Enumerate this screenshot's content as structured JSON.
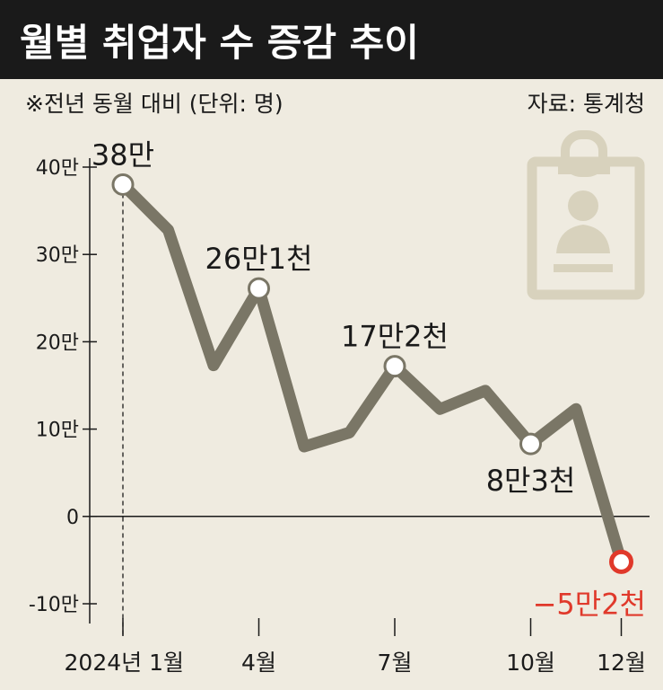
{
  "header": {
    "title": "월별 취업자 수 증감 추이",
    "subtitle": "※전년 동월 대비 (단위: 명)",
    "source": "자료: 통계청"
  },
  "colors": {
    "line": "#7a7666",
    "marker_fill": "#ffffff",
    "negative": "#e0392b",
    "icon": "#d8d2bd",
    "background": "#efebe0",
    "title_bar": "#1a1a1a"
  },
  "icon": "id-badge-icon",
  "chart_data": {
    "type": "line",
    "title": "월별 취업자 수 증감 추이",
    "x": [
      "2024-01",
      "2024-02",
      "2024-03",
      "2024-04",
      "2024-05",
      "2024-06",
      "2024-07",
      "2024-08",
      "2024-09",
      "2024-10",
      "2024-11",
      "2024-12"
    ],
    "x_tick_labels": [
      {
        "index": 0,
        "label": "2024년 1월"
      },
      {
        "index": 3,
        "label": "4월"
      },
      {
        "index": 6,
        "label": "7월"
      },
      {
        "index": 9,
        "label": "10월"
      },
      {
        "index": 11,
        "label": "12월"
      }
    ],
    "series": [
      {
        "values": [
          380000,
          328000,
          173000,
          261000,
          80000,
          96000,
          172000,
          123000,
          144000,
          83000,
          123000,
          -52000
        ]
      }
    ],
    "y_ticks": [
      {
        "value": 400000,
        "label": "40만"
      },
      {
        "value": 300000,
        "label": "30만"
      },
      {
        "value": 200000,
        "label": "20만"
      },
      {
        "value": 100000,
        "label": "10만"
      },
      {
        "value": 0,
        "label": "0"
      },
      {
        "value": -100000,
        "label": "-10만"
      }
    ],
    "ylim": [
      -100000,
      400000
    ],
    "annotations": [
      {
        "index": 0,
        "label": "38만",
        "position": "above"
      },
      {
        "index": 3,
        "label": "26만1천",
        "position": "above"
      },
      {
        "index": 6,
        "label": "17만2천",
        "position": "above"
      },
      {
        "index": 9,
        "label": "8만3천",
        "position": "below"
      },
      {
        "index": 11,
        "label": "−5만2천",
        "position": "below",
        "color": "negative"
      }
    ],
    "grid": false,
    "legend": "none"
  }
}
